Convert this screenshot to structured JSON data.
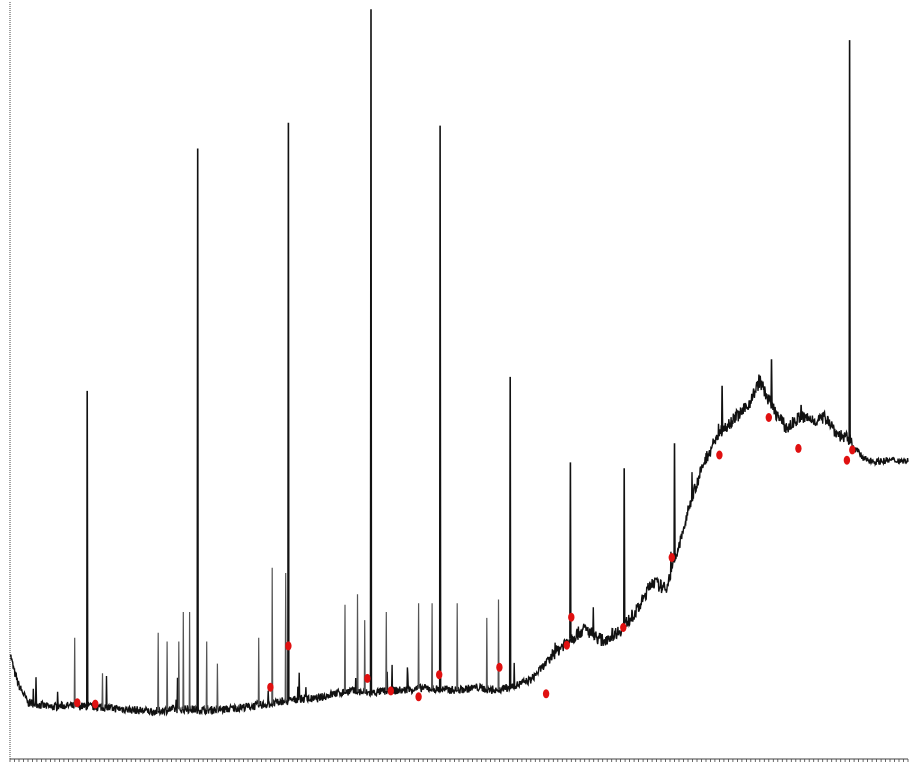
{
  "colors": {
    "trace": "#111111",
    "trace_light": "#555555",
    "peak_marker": "#e01010",
    "axis": "#444444",
    "background": "#ffffff"
  },
  "chart_data": {
    "type": "line",
    "grid": false,
    "legend": "none",
    "xlim": [
      0,
      1000
    ],
    "ylim": [
      0,
      100
    ],
    "x_tick_step": 5,
    "baseline": [
      [
        0,
        12.0
      ],
      [
        5,
        9.3
      ],
      [
        10,
        7.5
      ],
      [
        15,
        6.4
      ],
      [
        20,
        5.2
      ],
      [
        30,
        5.0
      ],
      [
        45,
        4.6
      ],
      [
        60,
        4.8
      ],
      [
        80,
        4.7
      ],
      [
        100,
        4.6
      ],
      [
        120,
        4.4
      ],
      [
        140,
        4.2
      ],
      [
        160,
        4.0
      ],
      [
        180,
        4.3
      ],
      [
        200,
        4.3
      ],
      [
        220,
        4.2
      ],
      [
        240,
        4.3
      ],
      [
        260,
        4.6
      ],
      [
        280,
        4.9
      ],
      [
        300,
        5.2
      ],
      [
        320,
        5.7
      ],
      [
        340,
        5.7
      ],
      [
        360,
        6.4
      ],
      [
        380,
        6.8
      ],
      [
        400,
        6.5
      ],
      [
        420,
        6.8
      ],
      [
        440,
        6.9
      ],
      [
        460,
        7.2
      ],
      [
        480,
        7.0
      ],
      [
        500,
        6.9
      ],
      [
        520,
        7.3
      ],
      [
        540,
        6.8
      ],
      [
        560,
        7.4
      ],
      [
        580,
        8.3
      ],
      [
        600,
        11.0
      ],
      [
        620,
        13.6
      ],
      [
        640,
        15.2
      ],
      [
        660,
        13.6
      ],
      [
        680,
        15.1
      ],
      [
        700,
        18.0
      ],
      [
        715,
        21.7
      ],
      [
        730,
        20.6
      ],
      [
        745,
        26.4
      ],
      [
        760,
        33.4
      ],
      [
        775,
        38.4
      ],
      [
        790,
        41.8
      ],
      [
        805,
        43.7
      ],
      [
        820,
        45.1
      ],
      [
        835,
        48.8
      ],
      [
        850,
        45.0
      ],
      [
        865,
        42.4
      ],
      [
        880,
        44.0
      ],
      [
        895,
        43.5
      ],
      [
        910,
        43.9
      ],
      [
        920,
        41.8
      ],
      [
        935,
        40.8
      ],
      [
        950,
        38.3
      ],
      [
        965,
        37.9
      ],
      [
        980,
        38.1
      ],
      [
        1000,
        38.0
      ]
    ],
    "peaks": [
      {
        "x": 72,
        "y": 14.0
      },
      {
        "x": 86,
        "y": 47.5
      },
      {
        "x": 103,
        "y": 9.2
      },
      {
        "x": 165,
        "y": 14.7
      },
      {
        "x": 175,
        "y": 13.5
      },
      {
        "x": 188,
        "y": 13.5
      },
      {
        "x": 193,
        "y": 17.5
      },
      {
        "x": 200,
        "y": 17.5
      },
      {
        "x": 209,
        "y": 80.4
      },
      {
        "x": 219,
        "y": 13.5
      },
      {
        "x": 231,
        "y": 10.5
      },
      {
        "x": 277,
        "y": 14.0
      },
      {
        "x": 292,
        "y": 23.5
      },
      {
        "x": 307,
        "y": 22.8
      },
      {
        "x": 310,
        "y": 83.9
      },
      {
        "x": 373,
        "y": 18.5
      },
      {
        "x": 387,
        "y": 19.9
      },
      {
        "x": 395,
        "y": 16.4
      },
      {
        "x": 402,
        "y": 99.3
      },
      {
        "x": 419,
        "y": 17.5
      },
      {
        "x": 455,
        "y": 18.7
      },
      {
        "x": 470,
        "y": 18.7
      },
      {
        "x": 479,
        "y": 83.5
      },
      {
        "x": 498,
        "y": 18.7
      },
      {
        "x": 531,
        "y": 16.7
      },
      {
        "x": 544,
        "y": 19.2
      },
      {
        "x": 557,
        "y": 49.4
      },
      {
        "x": 624,
        "y": 37.8
      },
      {
        "x": 684,
        "y": 37.0
      },
      {
        "x": 740,
        "y": 40.4
      },
      {
        "x": 793,
        "y": 48.2
      },
      {
        "x": 848,
        "y": 51.8
      },
      {
        "x": 881,
        "y": 45.6
      },
      {
        "x": 935,
        "y": 95.1
      }
    ],
    "marked_regions": [
      {
        "x": 75,
        "y": 5.2
      },
      {
        "x": 95,
        "y": 5.0
      },
      {
        "x": 290,
        "y": 7.3
      },
      {
        "x": 310,
        "y": 12.9
      },
      {
        "x": 398,
        "y": 8.5
      },
      {
        "x": 424,
        "y": 6.8
      },
      {
        "x": 455,
        "y": 6.0
      },
      {
        "x": 478,
        "y": 9.0
      },
      {
        "x": 545,
        "y": 10.0
      },
      {
        "x": 597,
        "y": 6.4
      },
      {
        "x": 620,
        "y": 13.0
      },
      {
        "x": 625,
        "y": 16.8
      },
      {
        "x": 683,
        "y": 15.4
      },
      {
        "x": 737,
        "y": 24.9
      },
      {
        "x": 790,
        "y": 38.8
      },
      {
        "x": 845,
        "y": 43.9
      },
      {
        "x": 878,
        "y": 39.7
      },
      {
        "x": 932,
        "y": 38.1
      },
      {
        "x": 938,
        "y": 39.5
      }
    ]
  }
}
